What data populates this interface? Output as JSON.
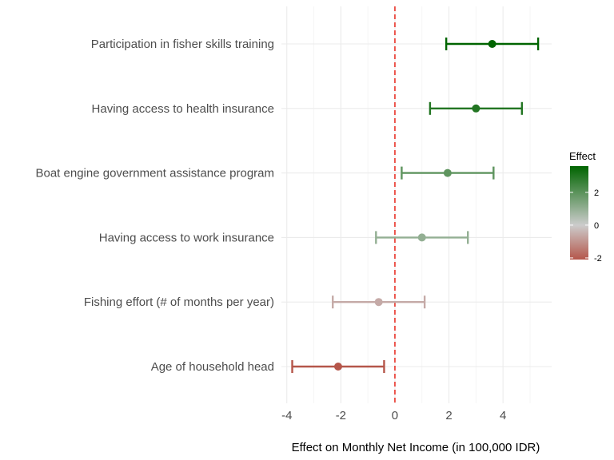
{
  "chart_data": {
    "type": "scatter",
    "subtype": "coefficient-plot-with-error-bars",
    "xlabel": "Effect on Monthly Net Income (in 100,000 IDR)",
    "ylabel": "",
    "xlim": [
      -4.2,
      5.8
    ],
    "x_ticks": [
      -4,
      -2,
      0,
      2,
      4
    ],
    "x_tick_labels": [
      "-4",
      "-2",
      "0",
      "2",
      "4"
    ],
    "reference_line": {
      "x": 0,
      "style": "dashed",
      "color": "#e8332a"
    },
    "grid": true,
    "categories": [
      "Participation in fisher skills training",
      "Having access to health insurance",
      "Boat engine government assistance program",
      "Having access to work insurance",
      "Fishing effort (# of months per year)",
      "Age of household head"
    ],
    "points": [
      {
        "label": "Participation in fisher skills training",
        "estimate": 3.6,
        "lower": 1.9,
        "upper": 5.3
      },
      {
        "label": "Having access to health insurance",
        "estimate": 3.0,
        "lower": 1.3,
        "upper": 4.7
      },
      {
        "label": "Boat engine government assistance program",
        "estimate": 1.95,
        "lower": 0.25,
        "upper": 3.65
      },
      {
        "label": "Having access to work insurance",
        "estimate": 1.0,
        "lower": -0.7,
        "upper": 2.7
      },
      {
        "label": "Fishing effort (# of months per year)",
        "estimate": -0.6,
        "lower": -2.3,
        "upper": 1.1
      },
      {
        "label": "Age of household head",
        "estimate": -2.1,
        "lower": -3.8,
        "upper": -0.4
      }
    ],
    "legend": {
      "title": "Effect",
      "placement": "right",
      "range": [
        -2.1,
        3.6
      ],
      "ticks": [
        2,
        0,
        -2
      ],
      "tick_labels": [
        "2",
        "0",
        "-2"
      ],
      "colors": {
        "low": "#b5564a",
        "mid": "#cccccc",
        "high": "#006400"
      }
    }
  }
}
